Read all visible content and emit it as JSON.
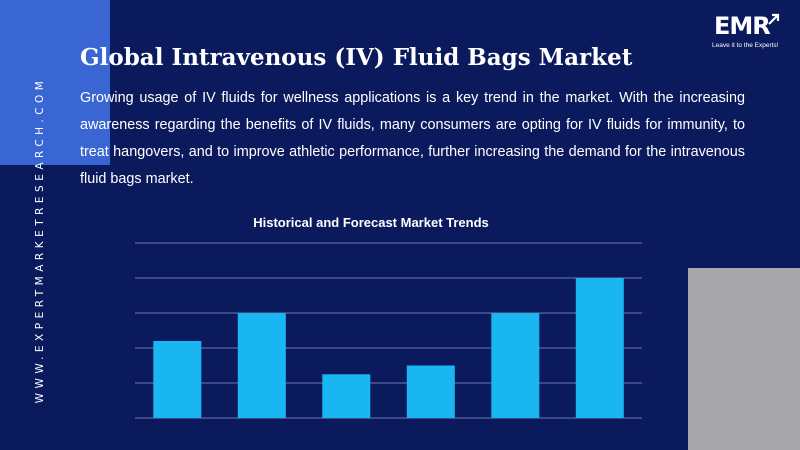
{
  "side_url": "WWW.EXPERTMARKETRESEARCH.COM",
  "title": "Global Intravenous (IV) Fluid Bags Market",
  "description": "Growing usage of IV fluids for wellness applications is a key trend in the market. With the increasing awareness regarding the benefits of IV fluids, many consumers are opting for IV fluids for immunity, to treat hangovers, and to improve athletic performance, further increasing the demand for the intravenous fluid bags market.",
  "logo": {
    "text": "EMR",
    "tagline": "Leave it to the Experts!"
  },
  "colors": {
    "background": "#0b1a5c",
    "accent_blue": "#3a66d4",
    "gray_block": "#a7a7aa",
    "bar": "#19b6f2",
    "gridline": "#6b7bb0"
  },
  "chart_data": {
    "type": "bar",
    "title": "Historical and Forecast Market Trends",
    "categories": [
      "",
      "",
      "",
      "",
      "",
      ""
    ],
    "values": [
      2.2,
      3.0,
      1.25,
      1.5,
      3.0,
      4.0
    ],
    "ylim": [
      0,
      5
    ],
    "grid": true,
    "legend": false,
    "axis_labels_shown": false
  }
}
